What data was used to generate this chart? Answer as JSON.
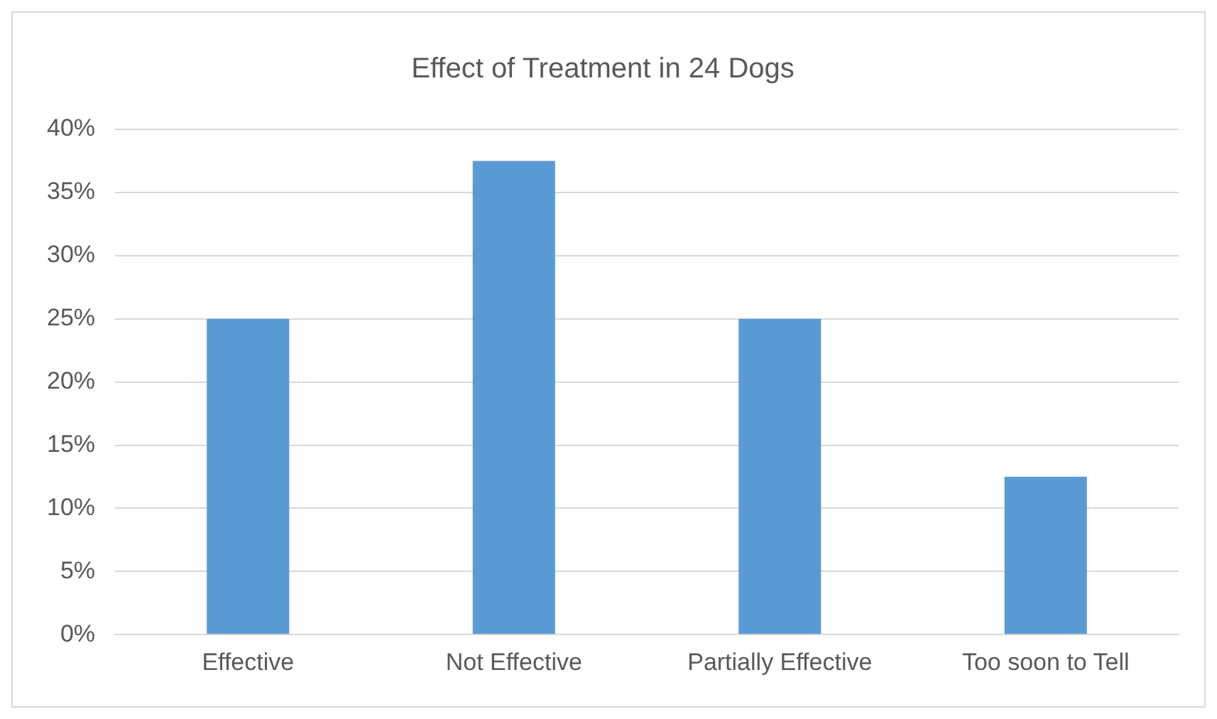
{
  "chart_data": {
    "type": "bar",
    "title": "Effect of Treatment in 24 Dogs",
    "categories": [
      "Effective",
      "Not Effective",
      "Partially Effective",
      "Too soon to Tell"
    ],
    "values": [
      25,
      37.5,
      25,
      12.5
    ],
    "color": "#5b9bd5",
    "ylim": [
      0,
      40
    ],
    "yticks": [
      {
        "value": 0,
        "label": "0%"
      },
      {
        "value": 5,
        "label": "5%"
      },
      {
        "value": 10,
        "label": "10%"
      },
      {
        "value": 15,
        "label": "15%"
      },
      {
        "value": 20,
        "label": "20%"
      },
      {
        "value": 25,
        "label": "25%"
      },
      {
        "value": 30,
        "label": "30%"
      },
      {
        "value": 35,
        "label": "35%"
      },
      {
        "value": 40,
        "label": "40%"
      }
    ],
    "grid": "y"
  }
}
